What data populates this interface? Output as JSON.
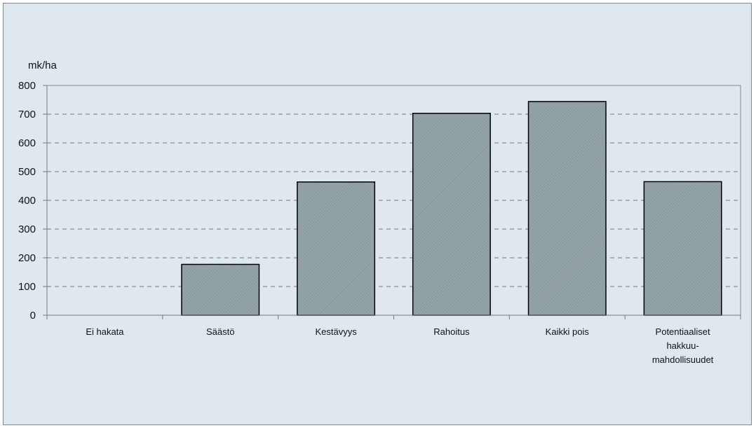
{
  "chart_data": {
    "type": "bar",
    "ylabel": "mk/ha",
    "ylim": [
      0,
      800
    ],
    "yticks": [
      0,
      100,
      200,
      300,
      400,
      500,
      600,
      700,
      800
    ],
    "categories": [
      [
        "Ei hakata"
      ],
      [
        "Säästö"
      ],
      [
        "Kestävyys"
      ],
      [
        "Rahoitus"
      ],
      [
        "Kaikki pois"
      ],
      [
        "Potentiaaliset",
        "hakkuu-",
        "mahdollisuudet"
      ]
    ],
    "values": [
      0,
      177,
      464,
      703,
      744,
      465
    ],
    "grid": true,
    "colors": {
      "background": "#dfe8ef",
      "bar_fill": "#95a4a7",
      "bar_hatch": "#7e8d91",
      "axis": "#777777",
      "grid": "#777777"
    }
  }
}
